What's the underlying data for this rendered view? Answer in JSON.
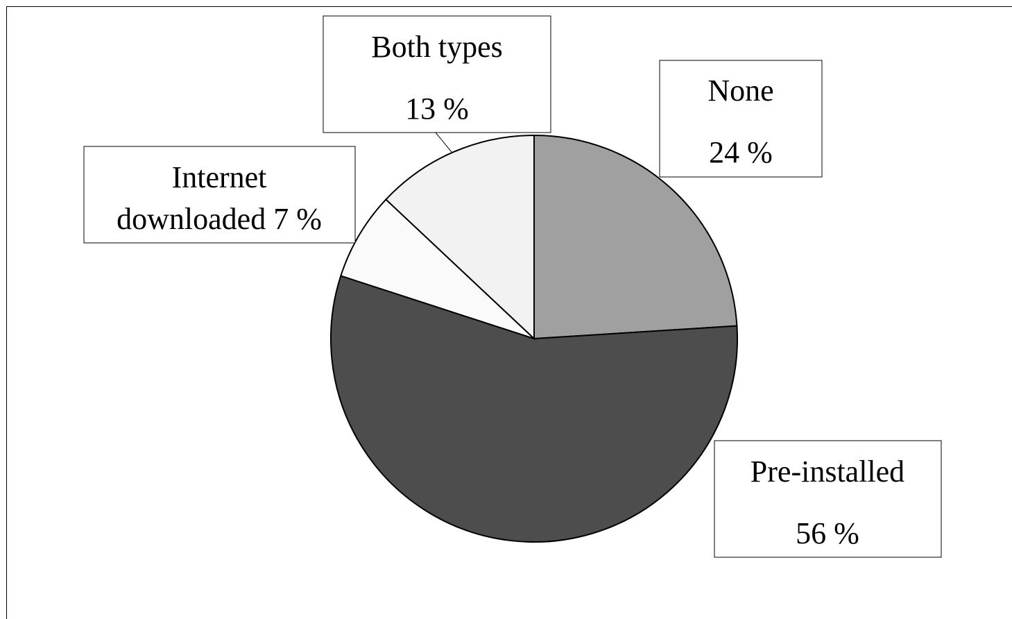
{
  "chart_data": {
    "type": "pie",
    "title": "",
    "start_angle_deg": 0,
    "direction": "clockwise",
    "slices": [
      {
        "label": "None",
        "value": 24,
        "value_text": "24 %",
        "color": "#a0a0a0"
      },
      {
        "label": "Pre-installed",
        "value": 56,
        "value_text": "56 %",
        "color": "#4d4d4d"
      },
      {
        "label": "Internet downloaded",
        "value": 7,
        "value_text": "7 %",
        "color": "#fafafa"
      },
      {
        "label": "Both types",
        "value": 13,
        "value_text": "13 %",
        "color": "#f2f2f2"
      }
    ]
  }
}
